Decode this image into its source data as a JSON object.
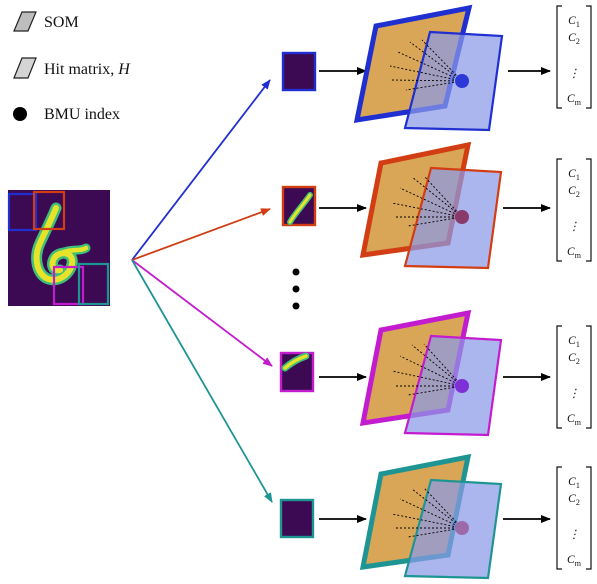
{
  "legend": {
    "som_label": "SOM",
    "hit_label": "Hit matrix, ",
    "hit_symbol": "H",
    "bmu_label": "BMU index"
  },
  "colors": {
    "som_fill": "#d9a657",
    "hit_fill": "#8a9ae8",
    "patch_fill": "#3b0a52",
    "digit_yellow": "#e7e32a",
    "digit_green": "#3fbf7a",
    "arrow_black": "#000000"
  },
  "branches": [
    {
      "name": "blue",
      "color": "#1f2fd0",
      "bmu_color": "#2b39d6"
    },
    {
      "name": "red",
      "color": "#d23d13",
      "bmu_color": "#8a3a6a"
    },
    {
      "name": "magenta",
      "color": "#c31ccf",
      "bmu_color": "#7f2fd6"
    },
    {
      "name": "teal",
      "color": "#1f9593",
      "bmu_color": "#9c6aa8"
    }
  ],
  "output_vector": {
    "c1": "C",
    "c1_sub": "1",
    "c2": "C",
    "c2_sub": "2",
    "dots": "⋮",
    "cm": "C",
    "cm_sub": "m"
  }
}
